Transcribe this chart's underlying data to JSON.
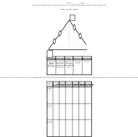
{
  "title_line": "Name _____________ Period ______",
  "directions_top": "Directions: On The Plot Diagram Map, Label and Define Its Parts. On The Table Below The Plot Diagram Map, Provide Evidence From The Short Story",
  "author_line": "Author: William Sleator",
  "table1_headers": [
    "Exposition",
    "Rising Action",
    "Climax",
    "Falling Action",
    "Resolution"
  ],
  "contents1": [
    "Setting: Village,\nDay city\n1986-1988\nCharacters:\nMartin, fat lady,\nMartin's dad",
    "Martin is afraid of\nstrangers, the thin\nlady, fat lady...\nMartin finds out he\nis supposed to\ntake the situation",
    "Fat lady predicts\nMartin's fat\nalter situations,\nconflict - man's life\nMartin has to make\nhim stop",
    "Martin is fat.\nHide story.",
    "Hide story."
  ],
  "directions_bottom": "Directions: Use the boxes from the top of each area. Then, fill in the appropriate information in each box. There are no wrong answers as long as the information is from the story. If there are not enough examples you may use the same event/person as many times as needed.",
  "table2_headers": [
    "Character",
    "Characterization and\nSetting",
    "Conflict",
    "Foreshadowing and\nSuspense",
    "Figures of\nspeech",
    "Point of View and\nwho tells the story"
  ],
  "table2_row_labels": [
    "Protagonist\n\nSetting",
    "Antagonist\n\nSetting",
    "Foil or Minor\nCharacter"
  ],
  "bg_color": "#ffffff"
}
